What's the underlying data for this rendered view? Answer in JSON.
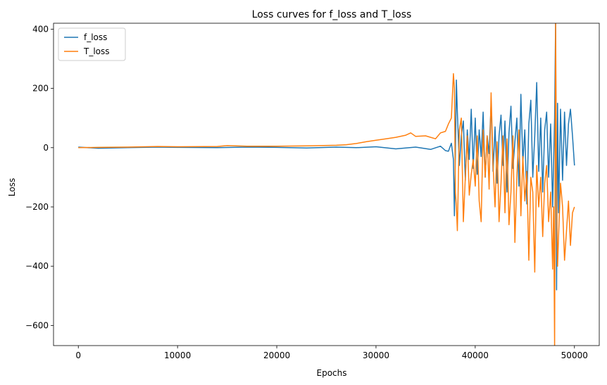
{
  "chart_data": {
    "type": "line",
    "title": "Loss curves for f_loss and T_loss",
    "xlabel": "Epochs",
    "ylabel": "Loss",
    "xlim": [
      -2500,
      52500
    ],
    "ylim": [
      -668,
      420
    ],
    "xticks": [
      0,
      10000,
      20000,
      30000,
      40000,
      50000
    ],
    "yticks": [
      -600,
      -400,
      -200,
      0,
      200,
      400
    ],
    "xtick_labels": [
      "0",
      "10000",
      "20000",
      "30000",
      "40000",
      "50000"
    ],
    "ytick_labels": [
      "−600",
      "−400",
      "−200",
      "0",
      "200",
      "400"
    ],
    "grid": false,
    "legend": "top-left",
    "series": [
      {
        "name": "f_loss",
        "color": "#1f77b4",
        "x": [
          0,
          2000,
          5000,
          8000,
          10000,
          14000,
          17000,
          20000,
          23000,
          26000,
          28000,
          30000,
          32000,
          34000,
          35500,
          36500,
          37000,
          37300,
          37600,
          37800,
          37900,
          38000,
          38100,
          38200,
          38400,
          38600,
          38800,
          39000,
          39200,
          39400,
          39600,
          39800,
          40000,
          40200,
          40400,
          40600,
          40800,
          41000,
          41200,
          41400,
          41600,
          41800,
          42000,
          42200,
          42400,
          42600,
          42800,
          43000,
          43200,
          43400,
          43600,
          43800,
          44000,
          44200,
          44400,
          44600,
          44800,
          45000,
          45200,
          45400,
          45600,
          45800,
          46000,
          46200,
          46400,
          46600,
          46800,
          47000,
          47200,
          47400,
          47600,
          47800,
          48000,
          48100,
          48200,
          48300,
          48400,
          48600,
          48800,
          49000,
          49200,
          49400,
          49600,
          49800,
          50000
        ],
        "y": [
          2,
          -2,
          0,
          2,
          1,
          0,
          2,
          1,
          -1,
          2,
          0,
          3,
          -4,
          2,
          -6,
          5,
          -10,
          -12,
          15,
          -40,
          -230,
          -20,
          228,
          120,
          -60,
          40,
          90,
          -110,
          60,
          -40,
          130,
          -70,
          100,
          -90,
          60,
          -30,
          120,
          -100,
          40,
          -20,
          150,
          -80,
          70,
          -120,
          40,
          110,
          -60,
          90,
          -150,
          50,
          140,
          -70,
          20,
          100,
          -130,
          180,
          -50,
          60,
          -190,
          80,
          160,
          -100,
          40,
          220,
          -80,
          100,
          -150,
          60,
          120,
          -100,
          80,
          -200,
          100,
          430,
          -480,
          150,
          -220,
          130,
          -110,
          120,
          -60,
          80,
          130,
          40,
          -60
        ]
      },
      {
        "name": "T_loss",
        "color": "#ff7f0e",
        "x": [
          0,
          2000,
          5000,
          8000,
          10000,
          14000,
          15000,
          17000,
          20000,
          23000,
          26000,
          27000,
          28000,
          29000,
          30000,
          31000,
          32000,
          33000,
          33500,
          34000,
          35000,
          36000,
          36500,
          37000,
          37300,
          37600,
          37800,
          37900,
          38000,
          38100,
          38200,
          38400,
          38600,
          38800,
          39000,
          39200,
          39400,
          39600,
          39800,
          40000,
          40200,
          40400,
          40600,
          40800,
          41000,
          41200,
          41400,
          41600,
          41800,
          42000,
          42200,
          42400,
          42600,
          42800,
          43000,
          43200,
          43400,
          43600,
          43800,
          44000,
          44200,
          44400,
          44600,
          44800,
          45000,
          45200,
          45400,
          45600,
          45800,
          46000,
          46200,
          46400,
          46600,
          46800,
          47000,
          47200,
          47400,
          47600,
          47800,
          47900,
          48000,
          48100,
          48200,
          48300,
          48400,
          48600,
          48800,
          49000,
          49200,
          49400,
          49600,
          49800,
          50000
        ],
        "y": [
          0,
          1,
          2,
          4,
          3,
          4,
          7,
          5,
          5,
          6,
          8,
          10,
          14,
          20,
          25,
          30,
          35,
          42,
          50,
          38,
          40,
          30,
          50,
          55,
          80,
          100,
          250,
          200,
          -150,
          -200,
          -280,
          60,
          100,
          -250,
          -100,
          40,
          -160,
          -90,
          -40,
          -130,
          40,
          -180,
          -250,
          60,
          -100,
          40,
          -140,
          185,
          -60,
          -200,
          20,
          -250,
          -120,
          40,
          -220,
          30,
          -260,
          -150,
          40,
          -320,
          -100,
          60,
          -230,
          -30,
          -180,
          -80,
          -380,
          -100,
          -150,
          -420,
          -60,
          -200,
          -100,
          -300,
          -120,
          -60,
          -250,
          -150,
          -410,
          -200,
          -670,
          430,
          -160,
          -400,
          -300,
          -120,
          -200,
          -380,
          -280,
          -180,
          -330,
          -220,
          -200
        ]
      }
    ]
  }
}
